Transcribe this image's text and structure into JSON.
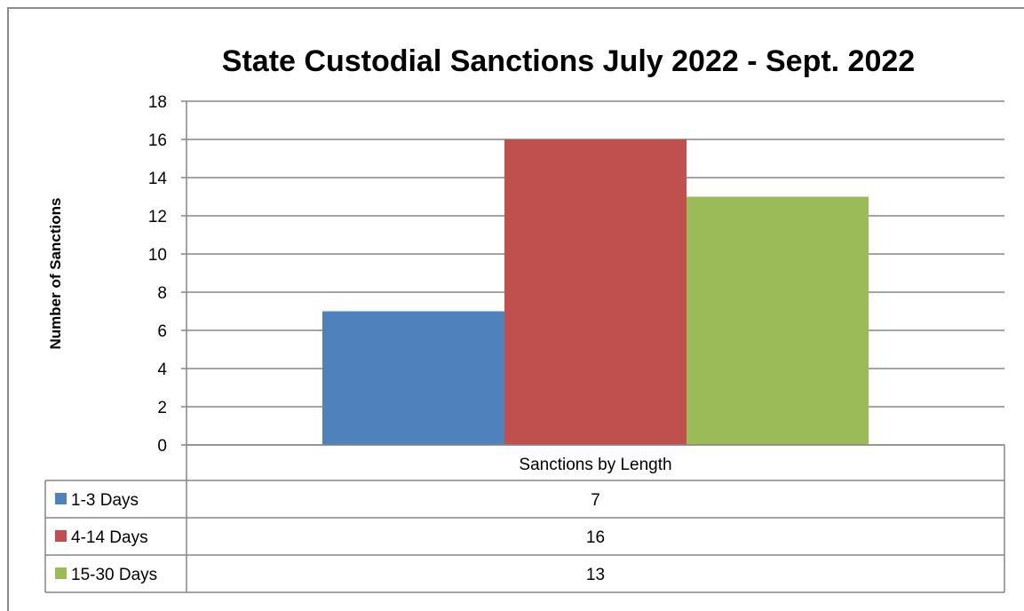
{
  "chart_data": {
    "type": "bar",
    "title": "State Custodial Sanctions July 2022 - Sept. 2022",
    "xlabel": "Sanctions by Length",
    "ylabel": "Number of Sanctions",
    "categories": [
      "Sanctions by Length"
    ],
    "series": [
      {
        "name": "1-3 Days",
        "values": [
          7
        ],
        "color": "#4F81BD"
      },
      {
        "name": "4-14 Days",
        "values": [
          16
        ],
        "color": "#C0504D"
      },
      {
        "name": "15-30 Days",
        "values": [
          13
        ],
        "color": "#9BBB59"
      }
    ],
    "ylim": [
      0,
      18
    ],
    "yticks": [
      "0",
      "2",
      "4",
      "6",
      "8",
      "10",
      "12",
      "14",
      "16",
      "18"
    ],
    "grid": true,
    "legend": "data-table"
  }
}
